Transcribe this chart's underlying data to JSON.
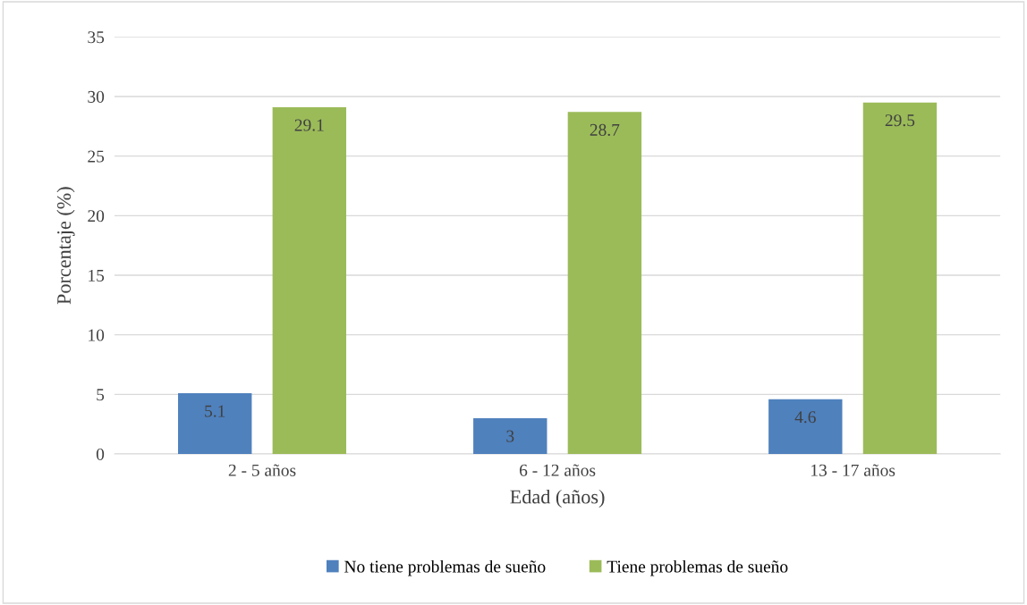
{
  "chart_data": {
    "type": "bar",
    "xlabel": "Edad (años)",
    "ylabel": "Porcentaje (%)",
    "categories": [
      "2 - 5 años",
      "6 - 12 años",
      "13 - 17 años"
    ],
    "series": [
      {
        "name": "No tiene problemas de sueño",
        "color": "#4f81bd",
        "values": [
          5.1,
          3,
          4.6
        ]
      },
      {
        "name": "Tiene problemas de sueño",
        "color": "#9bbb59",
        "values": [
          29.1,
          28.7,
          29.5
        ]
      }
    ],
    "ylim": [
      0,
      35
    ],
    "yticks": [
      0,
      5,
      10,
      15,
      20,
      25,
      30,
      35
    ],
    "grid": "y",
    "legend": "bottom",
    "data_labels": true
  }
}
